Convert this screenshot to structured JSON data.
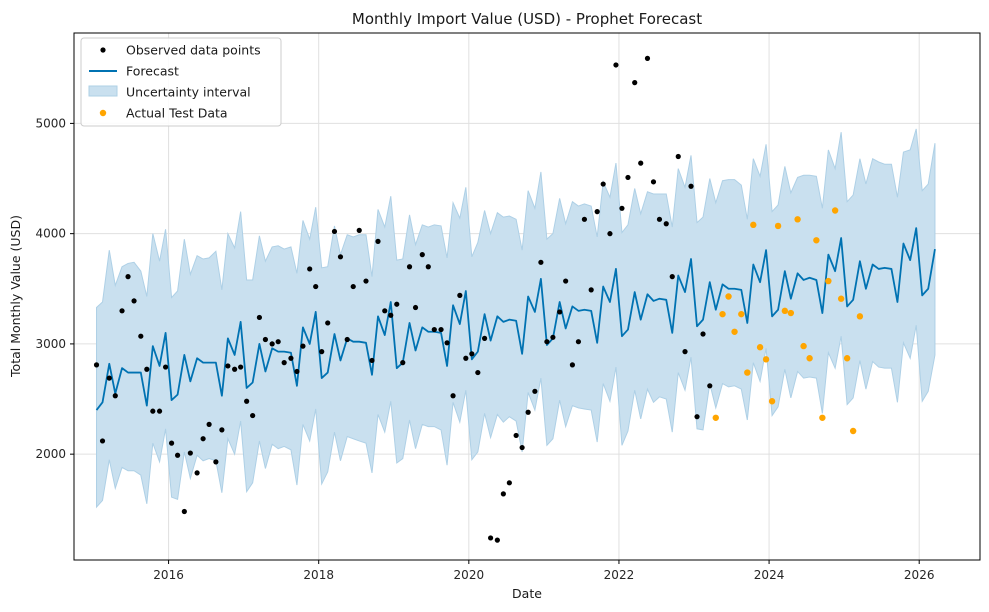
{
  "chart_data": {
    "type": "line",
    "title": "Monthly Import Value (USD) - Prophet Forecast",
    "xlabel": "Date",
    "ylabel": "Total Monthly Value (USD)",
    "xlim": [
      2014.74,
      2026.81
    ],
    "ylim": [
      1040,
      5820
    ],
    "x_ticks": [
      2016,
      2018,
      2020,
      2022,
      2024,
      2026
    ],
    "x_tick_labels": [
      "2016",
      "2018",
      "2020",
      "2022",
      "2024",
      "2026"
    ],
    "y_ticks": [
      2000,
      3000,
      4000,
      5000
    ],
    "y_tick_labels": [
      "2000",
      "3000",
      "4000",
      "5000"
    ],
    "grid": true,
    "legend_position": "top-left",
    "legend": [
      {
        "key": "observed",
        "label": "Observed data points",
        "marker": "dot",
        "color": "#000000"
      },
      {
        "key": "forecast",
        "label": "Forecast",
        "marker": "line",
        "color": "#0072B2"
      },
      {
        "key": "interval",
        "label": "Uncertainty interval",
        "marker": "patch",
        "color": "#0072B2"
      },
      {
        "key": "test",
        "label": "Actual Test Data",
        "marker": "dot",
        "color": "#FFA500"
      }
    ],
    "colors": {
      "observed": "#000000",
      "forecast": "#0072B2",
      "interval_fill": "#c9e0ef",
      "interval_edge": "#aed0e6",
      "test": "#FFA500",
      "grid": "#e0e0e0"
    },
    "observed": [
      [
        2015.04,
        2810
      ],
      [
        2015.12,
        2120
      ],
      [
        2015.21,
        2690
      ],
      [
        2015.29,
        2530
      ],
      [
        2015.38,
        3300
      ],
      [
        2015.46,
        3610
      ],
      [
        2015.54,
        3390
      ],
      [
        2015.63,
        3070
      ],
      [
        2015.71,
        2770
      ],
      [
        2015.79,
        2390
      ],
      [
        2015.88,
        2390
      ],
      [
        2015.96,
        2790
      ],
      [
        2016.04,
        2100
      ],
      [
        2016.12,
        1990
      ],
      [
        2016.21,
        1480
      ],
      [
        2016.29,
        2010
      ],
      [
        2016.38,
        1830
      ],
      [
        2016.46,
        2140
      ],
      [
        2016.54,
        2270
      ],
      [
        2016.63,
        1930
      ],
      [
        2016.71,
        2220
      ],
      [
        2016.79,
        2800
      ],
      [
        2016.88,
        2770
      ],
      [
        2016.96,
        2790
      ],
      [
        2017.04,
        2480
      ],
      [
        2017.12,
        2350
      ],
      [
        2017.21,
        3240
      ],
      [
        2017.29,
        3040
      ],
      [
        2017.38,
        3000
      ],
      [
        2017.46,
        3020
      ],
      [
        2017.54,
        2830
      ],
      [
        2017.63,
        2870
      ],
      [
        2017.71,
        2750
      ],
      [
        2017.79,
        2980
      ],
      [
        2017.88,
        3680
      ],
      [
        2017.96,
        3520
      ],
      [
        2018.04,
        2930
      ],
      [
        2018.12,
        3190
      ],
      [
        2018.21,
        4020
      ],
      [
        2018.29,
        3790
      ],
      [
        2018.38,
        3040
      ],
      [
        2018.46,
        3520
      ],
      [
        2018.54,
        4030
      ],
      [
        2018.63,
        3570
      ],
      [
        2018.71,
        2850
      ],
      [
        2018.79,
        3930
      ],
      [
        2018.88,
        3300
      ],
      [
        2018.96,
        3260
      ],
      [
        2019.04,
        3360
      ],
      [
        2019.12,
        2830
      ],
      [
        2019.21,
        3700
      ],
      [
        2019.29,
        3330
      ],
      [
        2019.38,
        3810
      ],
      [
        2019.46,
        3700
      ],
      [
        2019.54,
        3130
      ],
      [
        2019.63,
        3130
      ],
      [
        2019.71,
        3010
      ],
      [
        2019.79,
        2530
      ],
      [
        2019.88,
        3440
      ],
      [
        2019.96,
        2870
      ],
      [
        2020.04,
        2910
      ],
      [
        2020.12,
        2740
      ],
      [
        2020.21,
        3050
      ],
      [
        2020.29,
        1240
      ],
      [
        2020.38,
        1220
      ],
      [
        2020.46,
        1640
      ],
      [
        2020.54,
        1740
      ],
      [
        2020.63,
        2170
      ],
      [
        2020.71,
        2060
      ],
      [
        2020.79,
        2380
      ],
      [
        2020.88,
        2570
      ],
      [
        2020.96,
        3740
      ],
      [
        2021.04,
        3020
      ],
      [
        2021.12,
        3060
      ],
      [
        2021.21,
        3290
      ],
      [
        2021.29,
        3570
      ],
      [
        2021.38,
        2810
      ],
      [
        2021.46,
        3020
      ],
      [
        2021.54,
        4130
      ],
      [
        2021.63,
        3490
      ],
      [
        2021.71,
        4200
      ],
      [
        2021.79,
        4450
      ],
      [
        2021.88,
        4000
      ],
      [
        2021.96,
        5530
      ],
      [
        2022.04,
        4230
      ],
      [
        2022.12,
        4510
      ],
      [
        2022.21,
        5370
      ],
      [
        2022.29,
        4640
      ],
      [
        2022.38,
        5590
      ],
      [
        2022.46,
        4470
      ],
      [
        2022.54,
        4130
      ],
      [
        2022.63,
        4090
      ],
      [
        2022.71,
        3610
      ],
      [
        2022.79,
        4700
      ],
      [
        2022.88,
        2930
      ],
      [
        2022.96,
        4430
      ],
      [
        2023.04,
        2340
      ],
      [
        2023.12,
        3090
      ],
      [
        2023.21,
        2620
      ]
    ],
    "test": [
      [
        2023.29,
        2330
      ],
      [
        2023.38,
        3270
      ],
      [
        2023.46,
        3430
      ],
      [
        2023.54,
        3110
      ],
      [
        2023.63,
        3270
      ],
      [
        2023.71,
        2740
      ],
      [
        2023.79,
        4080
      ],
      [
        2023.88,
        2970
      ],
      [
        2023.96,
        2860
      ],
      [
        2024.04,
        2480
      ],
      [
        2024.12,
        4070
      ],
      [
        2024.21,
        3300
      ],
      [
        2024.29,
        3280
      ],
      [
        2024.38,
        4130
      ],
      [
        2024.46,
        2980
      ],
      [
        2024.54,
        2870
      ],
      [
        2024.63,
        3940
      ],
      [
        2024.71,
        2330
      ],
      [
        2024.79,
        3570
      ],
      [
        2024.88,
        4210
      ],
      [
        2024.96,
        3410
      ],
      [
        2025.04,
        2870
      ],
      [
        2025.12,
        2210
      ],
      [
        2025.21,
        3250
      ]
    ],
    "forecast": {
      "x": [
        2015.04,
        2015.12,
        2015.21,
        2015.29,
        2015.38,
        2015.46,
        2015.54,
        2015.63,
        2015.71,
        2015.79,
        2015.88,
        2015.96,
        2016.04,
        2016.12,
        2016.21,
        2016.29,
        2016.38,
        2016.46,
        2016.54,
        2016.63,
        2016.71,
        2016.79,
        2016.88,
        2016.96,
        2017.04,
        2017.12,
        2017.21,
        2017.29,
        2017.38,
        2017.46,
        2017.54,
        2017.63,
        2017.71,
        2017.79,
        2017.88,
        2017.96,
        2018.04,
        2018.12,
        2018.21,
        2018.29,
        2018.38,
        2018.46,
        2018.54,
        2018.63,
        2018.71,
        2018.79,
        2018.88,
        2018.96,
        2019.04,
        2019.12,
        2019.21,
        2019.29,
        2019.38,
        2019.46,
        2019.54,
        2019.63,
        2019.71,
        2019.79,
        2019.88,
        2019.96,
        2020.04,
        2020.12,
        2020.21,
        2020.29,
        2020.38,
        2020.46,
        2020.54,
        2020.63,
        2020.71,
        2020.79,
        2020.88,
        2020.96,
        2021.04,
        2021.12,
        2021.21,
        2021.29,
        2021.38,
        2021.46,
        2021.54,
        2021.63,
        2021.71,
        2021.79,
        2021.88,
        2021.96,
        2022.04,
        2022.12,
        2022.21,
        2022.29,
        2022.38,
        2022.46,
        2022.54,
        2022.63,
        2022.71,
        2022.79,
        2022.88,
        2022.96,
        2023.04,
        2023.12,
        2023.21,
        2023.29,
        2023.38,
        2023.46,
        2023.54,
        2023.63,
        2023.71,
        2023.79,
        2023.88,
        2023.96,
        2024.04,
        2024.12,
        2024.21,
        2024.29,
        2024.38,
        2024.46,
        2024.54,
        2024.63,
        2024.71,
        2024.79,
        2024.88,
        2024.96,
        2025.04,
        2025.12,
        2025.21,
        2025.29,
        2025.38,
        2025.46,
        2025.54,
        2025.63,
        2025.71,
        2025.79,
        2025.88,
        2025.96,
        2026.04,
        2026.12,
        2026.21
      ],
      "yhat": [
        2400,
        2470,
        2820,
        2550,
        2780,
        2740,
        2740,
        2740,
        2440,
        2980,
        2800,
        3100,
        2490,
        2540,
        2900,
        2660,
        2870,
        2830,
        2830,
        2830,
        2530,
        3050,
        2900,
        3200,
        2600,
        2650,
        3000,
        2750,
        2960,
        2930,
        2930,
        2920,
        2620,
        3150,
        3000,
        3290,
        2690,
        2740,
        3090,
        2850,
        3050,
        3020,
        3020,
        3010,
        2720,
        3250,
        3080,
        3380,
        2780,
        2830,
        3190,
        2940,
        3150,
        3110,
        3110,
        3100,
        2800,
        3350,
        3180,
        3480,
        2860,
        2930,
        3270,
        3030,
        3250,
        3200,
        3220,
        3210,
        2910,
        3430,
        3290,
        3590,
        2990,
        3050,
        3380,
        3140,
        3340,
        3300,
        3310,
        3300,
        3010,
        3520,
        3380,
        3680,
        3070,
        3130,
        3470,
        3220,
        3450,
        3390,
        3410,
        3400,
        3100,
        3620,
        3470,
        3770,
        3160,
        3220,
        3560,
        3310,
        3540,
        3500,
        3500,
        3490,
        3190,
        3720,
        3560,
        3850,
        3250,
        3310,
        3660,
        3410,
        3640,
        3580,
        3600,
        3580,
        3280,
        3810,
        3660,
        3960,
        3340,
        3400,
        3750,
        3500,
        3720,
        3680,
        3690,
        3680,
        3380,
        3910,
        3760,
        4050,
        3440,
        3500,
        3860
      ],
      "lower": [
        1520,
        1580,
        1950,
        1690,
        1880,
        1850,
        1850,
        1810,
        1550,
        2100,
        1930,
        2230,
        1610,
        1590,
        2020,
        1780,
        1990,
        1940,
        1960,
        1940,
        1650,
        2140,
        2000,
        2300,
        1660,
        1740,
        2120,
        1870,
        2090,
        2050,
        2070,
        2040,
        1720,
        2270,
        2120,
        2410,
        1730,
        1840,
        2200,
        1940,
        2160,
        2140,
        2120,
        2100,
        1830,
        2360,
        2200,
        2480,
        1920,
        1960,
        2310,
        2050,
        2270,
        2250,
        2250,
        2220,
        1900,
        2470,
        2290,
        2580,
        1950,
        2020,
        2370,
        2150,
        2360,
        2290,
        2340,
        2300,
        2020,
        2560,
        2400,
        2690,
        2080,
        2140,
        2490,
        2250,
        2440,
        2420,
        2410,
        2400,
        2110,
        2640,
        2480,
        2790,
        2080,
        2210,
        2580,
        2320,
        2590,
        2470,
        2520,
        2500,
        2200,
        2740,
        2580,
        2880,
        2230,
        2220,
        2640,
        2420,
        2640,
        2610,
        2620,
        2590,
        2310,
        2830,
        2660,
        2960,
        2350,
        2430,
        2770,
        2510,
        2750,
        2690,
        2700,
        2690,
        2370,
        2920,
        2780,
        3070,
        2450,
        2510,
        2850,
        2590,
        2840,
        2790,
        2780,
        2780,
        2470,
        3010,
        2870,
        3170,
        2480,
        2570,
        2900
      ],
      "upper": [
        3330,
        3380,
        3850,
        3530,
        3700,
        3730,
        3740,
        3660,
        3430,
        4000,
        3750,
        4040,
        3420,
        3480,
        3950,
        3630,
        3800,
        3770,
        3780,
        3840,
        3490,
        4000,
        3870,
        4200,
        3580,
        3580,
        3980,
        3750,
        3880,
        3890,
        3860,
        3880,
        3640,
        4120,
        3950,
        4240,
        3690,
        3700,
        4070,
        3810,
        3990,
        3970,
        3990,
        3990,
        3610,
        4220,
        4060,
        4340,
        3760,
        3770,
        4170,
        3900,
        4080,
        4060,
        4080,
        4070,
        3780,
        4280,
        4140,
        4420,
        3790,
        3920,
        4210,
        4000,
        4190,
        4150,
        4160,
        4130,
        3850,
        4390,
        4230,
        4560,
        3950,
        4000,
        4320,
        4090,
        4290,
        4250,
        4270,
        4250,
        3970,
        4470,
        4330,
        4640,
        4010,
        4080,
        4410,
        4180,
        4380,
        4360,
        4360,
        4360,
        4060,
        4590,
        4420,
        4710,
        4100,
        4150,
        4500,
        4280,
        4480,
        4490,
        4490,
        4440,
        4130,
        4680,
        4520,
        4810,
        4200,
        4260,
        4610,
        4370,
        4510,
        4530,
        4530,
        4520,
        4230,
        4760,
        4590,
        4920,
        4290,
        4350,
        4680,
        4450,
        4680,
        4650,
        4630,
        4630,
        4330,
        4740,
        4760,
        4950,
        4390,
        4450,
        4820
      ]
    }
  }
}
